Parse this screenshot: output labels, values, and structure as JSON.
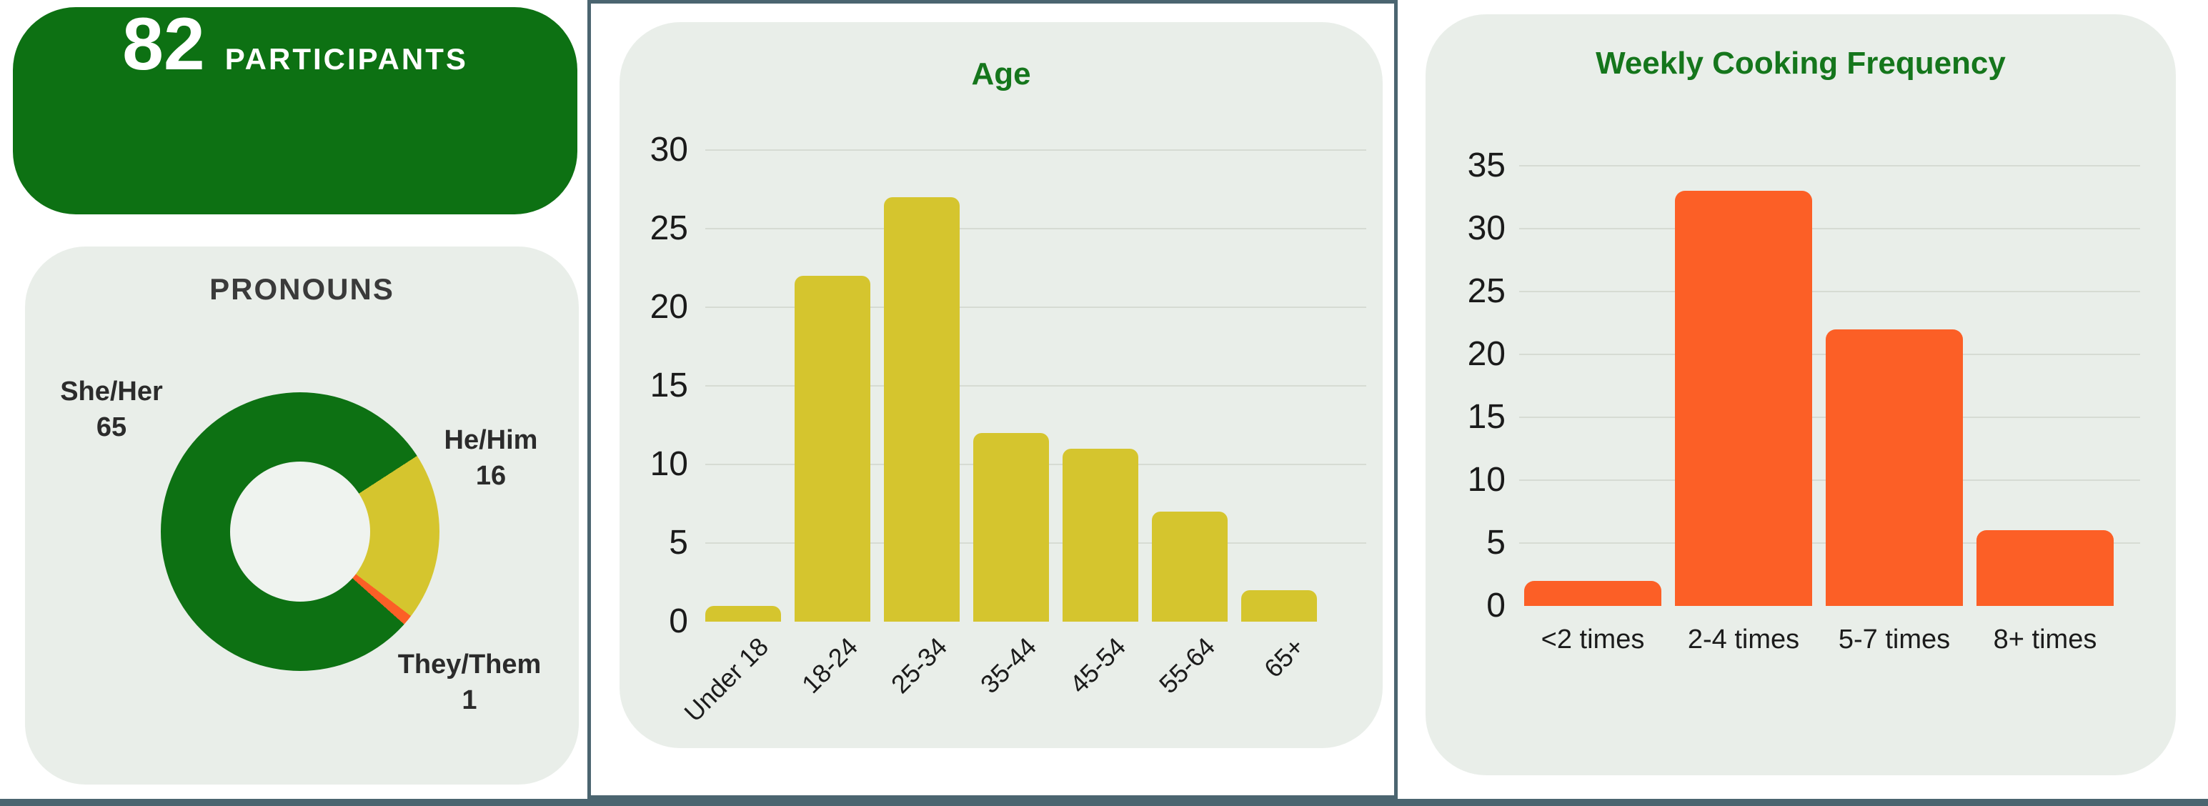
{
  "colors": {
    "green": "#0d7113",
    "yellow": "#d5c52e",
    "orange": "#fc5f26",
    "slate_border": "#4b6570",
    "panel_background": "#e9eee9",
    "donut_hole": "#eff3ef",
    "gridline": "#d6dbd3",
    "tick_text": "#1a1a1a",
    "label_text": "#2b2b2b",
    "title_green": "#15761c",
    "heading_text": "#3a3a3a",
    "stat_text": "#ffffff"
  },
  "stat_card": {
    "value": "82",
    "label": "PARTICIPANTS"
  },
  "chart_data": [
    {
      "id": "pronouns",
      "type": "pie",
      "title": "PRONOUNS",
      "labels": [
        "She/Her",
        "He/Him",
        "They/Them"
      ],
      "values": [
        65,
        16,
        1
      ],
      "segment_colors": [
        "#0d7113",
        "#d5c52e",
        "#fc5f26"
      ],
      "donut_hole_ratio": 0.5,
      "start_angle_deg": 131.7,
      "legend_position": "around-callouts"
    },
    {
      "id": "age",
      "type": "bar",
      "title": "Age",
      "title_color": "#15761c",
      "categories": [
        "Under 18",
        "18-24",
        "25-34",
        "35-44",
        "45-54",
        "55-64",
        "65+"
      ],
      "values": [
        1,
        22,
        27,
        12,
        11,
        7,
        2
      ],
      "bar_color": "#d5c52e",
      "yticks": [
        0,
        5,
        10,
        15,
        20,
        25,
        30
      ],
      "ylim": [
        0,
        30
      ],
      "grid": true,
      "x_label_rotation": -45,
      "xlabel": "",
      "ylabel": ""
    },
    {
      "id": "cooking",
      "type": "bar",
      "title": "Weekly Cooking Frequency",
      "title_color": "#15761c",
      "categories": [
        "<2 times",
        "2-4 times",
        "5-7 times",
        "8+ times"
      ],
      "values": [
        2,
        33,
        22,
        6
      ],
      "bar_color": "#fc5f26",
      "yticks": [
        0,
        5,
        10,
        15,
        20,
        25,
        30,
        35
      ],
      "ylim": [
        0,
        35
      ],
      "grid": true,
      "x_label_rotation": 0,
      "xlabel": "",
      "ylabel": ""
    }
  ]
}
